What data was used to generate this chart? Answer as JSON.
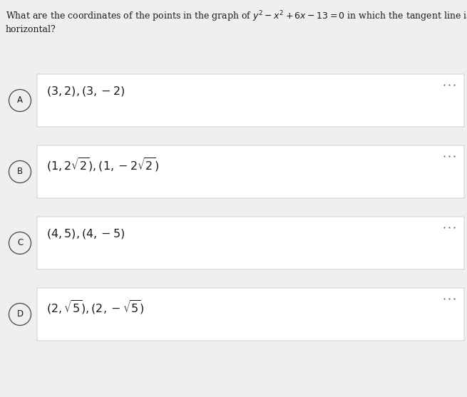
{
  "question_line1": "What are the coordinates of the points in the graph of $y^2 - x^2 + 6x - 13 = 0$ in which the tangent line is",
  "question_line2": "horizontal?",
  "options": [
    {
      "label": "A",
      "text": "$(3, 2), (3, -2)$"
    },
    {
      "label": "B",
      "text": "$(1, 2\\sqrt{2}), (1, -2\\sqrt{2})$"
    },
    {
      "label": "C",
      "text": "$(4, 5), (4, -5)$"
    },
    {
      "label": "D",
      "text": "$(2, \\sqrt{5}), (2, -\\sqrt{5})$"
    }
  ],
  "bg_color": "#efefef",
  "box_color": "#ffffff",
  "box_border_color": "#d0d0d0",
  "text_color": "#1a1a1a",
  "circle_edge_color": "#444444",
  "dots_color": "#666666",
  "question_fontsize": 9.0,
  "option_fontsize": 11.5,
  "label_fontsize": 8.5
}
